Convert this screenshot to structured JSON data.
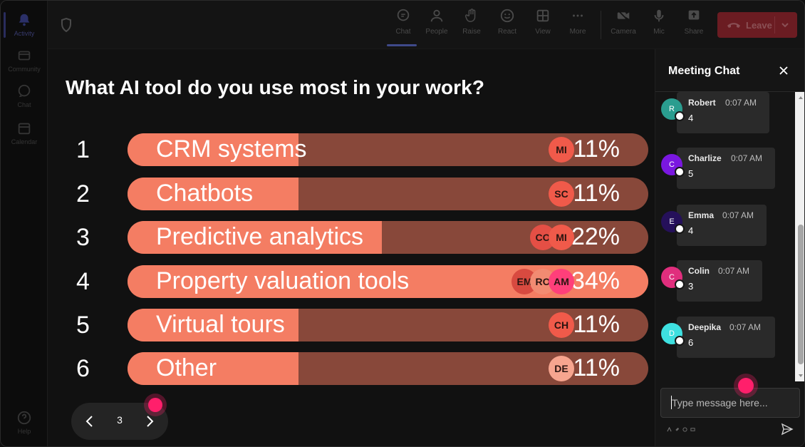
{
  "rail": {
    "items": [
      {
        "label": "Activity"
      },
      {
        "label": "Community"
      },
      {
        "label": "Chat"
      },
      {
        "label": "Calendar"
      },
      {
        "label": "Help"
      }
    ]
  },
  "toolbar": {
    "buttons": [
      {
        "label": "Chat",
        "icon": "chat-icon"
      },
      {
        "label": "People",
        "icon": "people-icon"
      },
      {
        "label": "Raise",
        "icon": "raise-hand-icon"
      },
      {
        "label": "React",
        "icon": "react-icon"
      },
      {
        "label": "View",
        "icon": "view-grid-icon"
      },
      {
        "label": "More",
        "icon": "more-icon"
      },
      {
        "label": "Camera",
        "icon": "camera-icon"
      },
      {
        "label": "Mic",
        "icon": "mic-icon"
      },
      {
        "label": "Share",
        "icon": "share-icon"
      }
    ],
    "leave_label": "Leave"
  },
  "poll": {
    "question": "What AI tool do you use most in your work?",
    "options": [
      {
        "num": "1",
        "label": "CRM systems",
        "percent": 11,
        "percent_text": "11%",
        "avatars": [
          "MI"
        ]
      },
      {
        "num": "2",
        "label": "Chatbots",
        "percent": 11,
        "percent_text": "11%",
        "avatars": [
          "SC"
        ]
      },
      {
        "num": "3",
        "label": "Predictive analytics",
        "percent": 22,
        "percent_text": "22%",
        "avatars": [
          "CO",
          "MI"
        ]
      },
      {
        "num": "4",
        "label": "Property valuation tools",
        "percent": 34,
        "percent_text": "34%",
        "avatars": [
          "EM",
          "RO",
          "AM"
        ]
      },
      {
        "num": "5",
        "label": "Virtual tours",
        "percent": 11,
        "percent_text": "11%",
        "avatars": [
          "CH"
        ]
      },
      {
        "num": "6",
        "label": "Other",
        "percent": 11,
        "percent_text": "11%",
        "avatars": [
          "DE"
        ]
      }
    ],
    "page": "3"
  },
  "chat": {
    "title": "Meeting Chat",
    "messages": [
      {
        "initial": "R",
        "name": "Robert",
        "time": "0:07 AM",
        "text": "4",
        "color": "#2a9d8f"
      },
      {
        "initial": "C",
        "name": "Charlize",
        "time": "0:07 AM",
        "text": "5",
        "color": "#7a17e0"
      },
      {
        "initial": "E",
        "name": "Emma",
        "time": "0:07 AM",
        "text": "4",
        "color": "#25105a"
      },
      {
        "initial": "C",
        "name": "Colin",
        "time": "0:07 AM",
        "text": "3",
        "color": "#e02e7d"
      },
      {
        "initial": "D",
        "name": "Deepika",
        "time": "0:07 AM",
        "text": "6",
        "color": "#3ee0e0"
      }
    ],
    "input_placeholder": "Type message here..."
  },
  "colors": {
    "bar_fill": "#f47d63",
    "bar_track": "#88483a",
    "leave": "#6b1c22",
    "pointer": "#ff1f6b"
  }
}
